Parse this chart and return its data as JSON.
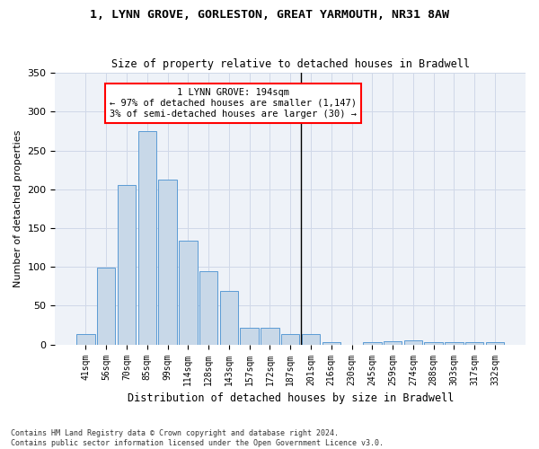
{
  "title1": "1, LYNN GROVE, GORLESTON, GREAT YARMOUTH, NR31 8AW",
  "title2": "Size of property relative to detached houses in Bradwell",
  "xlabel": "Distribution of detached houses by size in Bradwell",
  "ylabel": "Number of detached properties",
  "bar_color": "#c8d8e8",
  "bar_edge_color": "#5b9bd5",
  "categories": [
    "41sqm",
    "56sqm",
    "70sqm",
    "85sqm",
    "99sqm",
    "114sqm",
    "128sqm",
    "143sqm",
    "157sqm",
    "172sqm",
    "187sqm",
    "201sqm",
    "216sqm",
    "230sqm",
    "245sqm",
    "259sqm",
    "274sqm",
    "288sqm",
    "303sqm",
    "317sqm",
    "332sqm"
  ],
  "values": [
    13,
    99,
    205,
    275,
    213,
    134,
    94,
    69,
    22,
    22,
    14,
    14,
    3,
    0,
    3,
    4,
    5,
    3,
    3,
    3,
    3
  ],
  "vline_x": 10.5,
  "vline_label": "1 LYNN GROVE: 194sqm",
  "ann_line2": "← 97% of detached houses are smaller (1,147)",
  "ann_line3": "3% of semi-detached houses are larger (30) →",
  "ylim": [
    0,
    350
  ],
  "yticks": [
    0,
    50,
    100,
    150,
    200,
    250,
    300,
    350
  ],
  "grid_color": "#d0d8e8",
  "bg_color": "#eef2f8",
  "footer": "Contains HM Land Registry data © Crown copyright and database right 2024.\nContains public sector information licensed under the Open Government Licence v3.0."
}
